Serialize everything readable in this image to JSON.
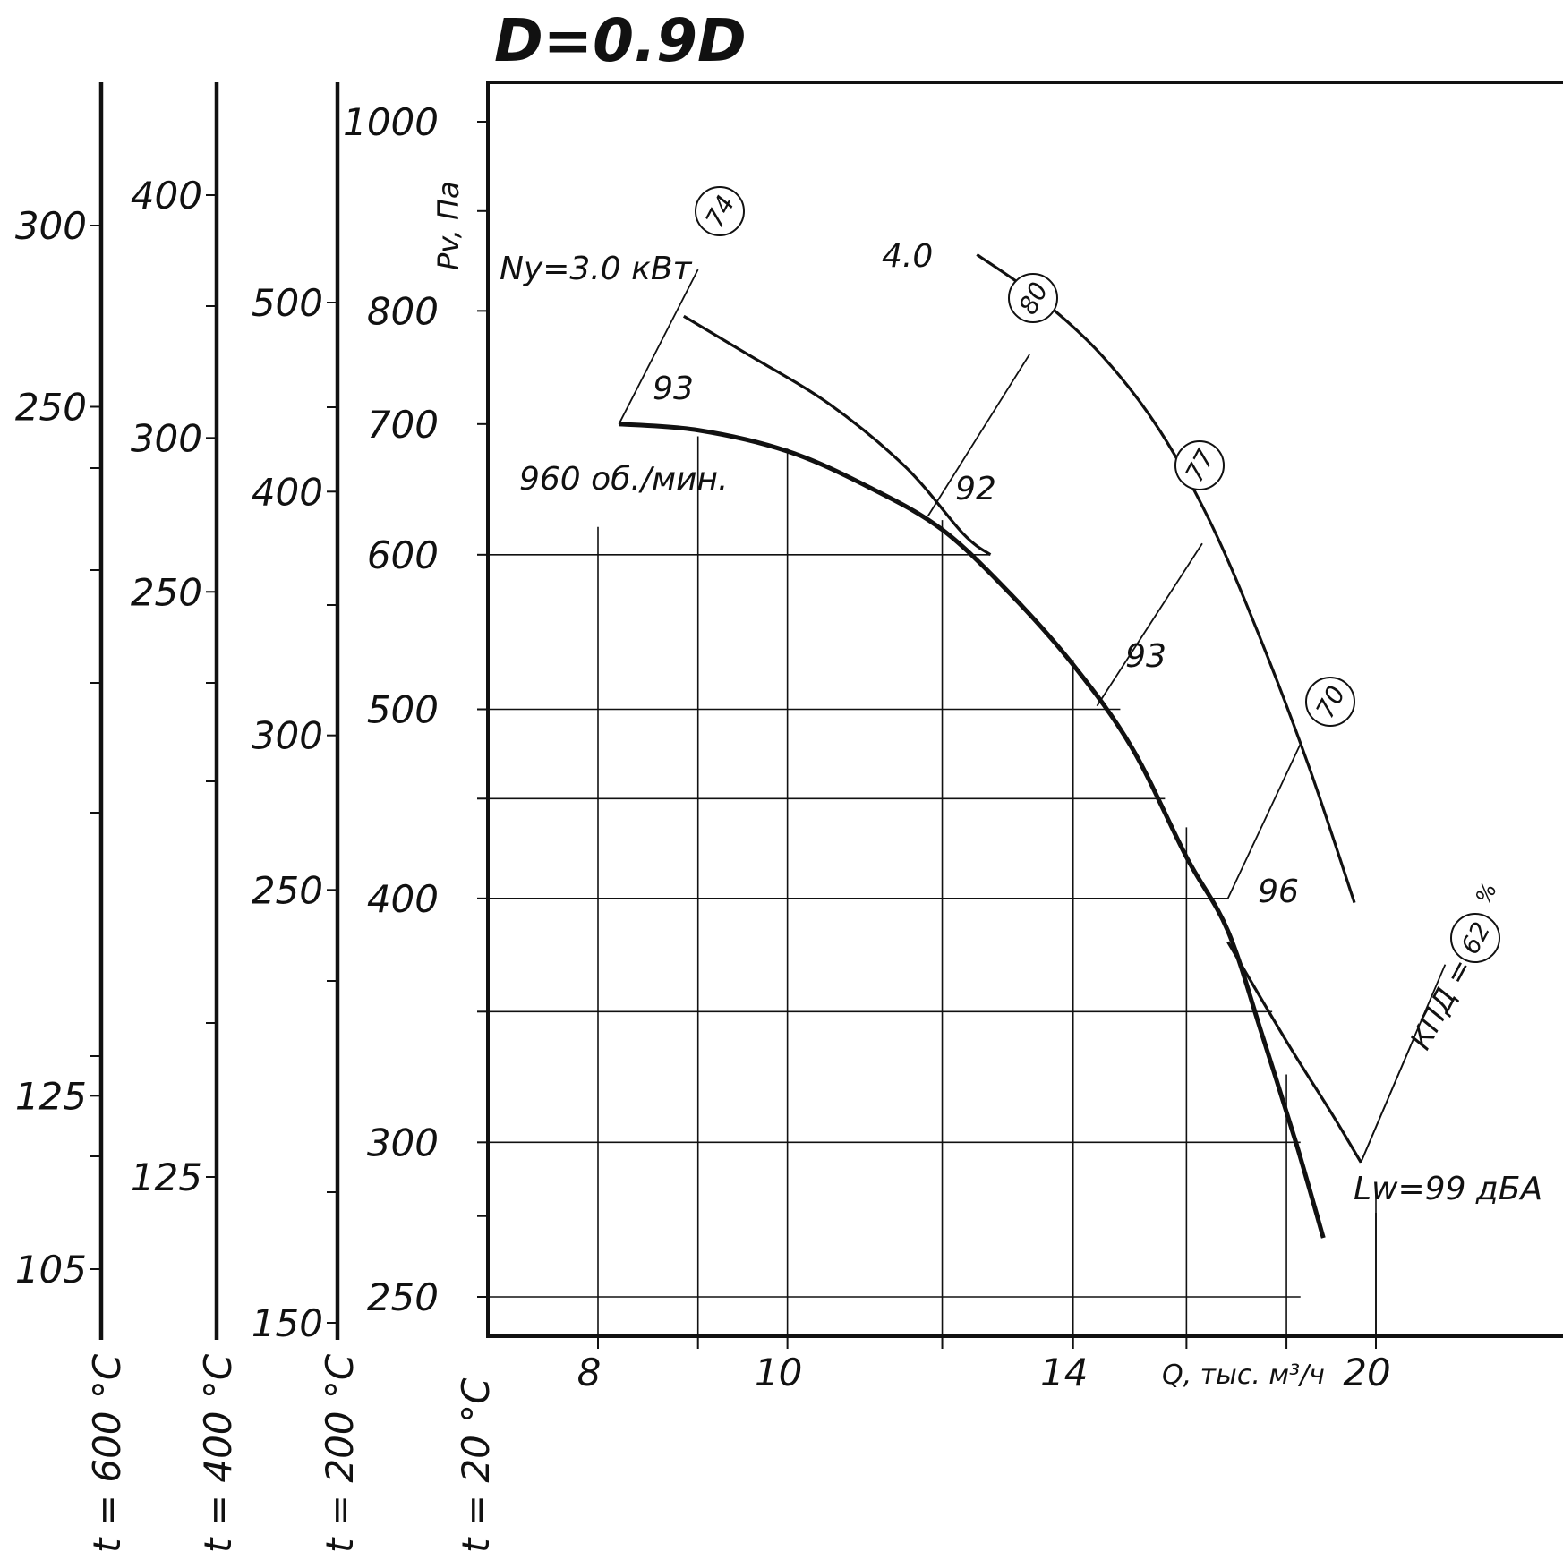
{
  "chart_data": {
    "type": "line",
    "title": "D=0.9D",
    "ylabel": "Pv, Па",
    "xlabel": "Q, тыс. м³/ч",
    "x_scale": "log",
    "y_scale": "log",
    "xlim": [
      6.5,
      25
    ],
    "ylim": [
      235,
      1050
    ],
    "x_ticks": [
      {
        "value": 8,
        "label": "8"
      },
      {
        "value": 9,
        "label": ""
      },
      {
        "value": 10,
        "label": "10"
      },
      {
        "value": 12,
        "label": ""
      },
      {
        "value": 14,
        "label": "14"
      },
      {
        "value": 16,
        "label": ""
      },
      {
        "value": 18,
        "label": ""
      },
      {
        "value": 20,
        "label": "20"
      }
    ],
    "y_ticks": [
      {
        "value": 250,
        "label": "250"
      },
      {
        "value": 275,
        "label": ""
      },
      {
        "value": 300,
        "label": "300"
      },
      {
        "value": 350,
        "label": ""
      },
      {
        "value": 400,
        "label": "400"
      },
      {
        "value": 450,
        "label": ""
      },
      {
        "value": 500,
        "label": "500"
      },
      {
        "value": 600,
        "label": "600"
      },
      {
        "value": 700,
        "label": "700"
      },
      {
        "value": 800,
        "label": "800"
      },
      {
        "value": 900,
        "label": ""
      },
      {
        "value": 1000,
        "label": "1000"
      }
    ],
    "gridlines": {
      "horizontal": [
        {
          "y": 250,
          "x_from": 6.5,
          "x_to": 18.3
        },
        {
          "y": 300,
          "x_from": 6.5,
          "x_to": 18.3
        },
        {
          "y": 350,
          "x_from": 6.5,
          "x_to": 17.7
        },
        {
          "y": 400,
          "x_from": 6.5,
          "x_to": 16.8
        },
        {
          "y": 450,
          "x_from": 6.5,
          "x_to": 15.6
        },
        {
          "y": 500,
          "x_from": 6.5,
          "x_to": 14.8
        },
        {
          "y": 600,
          "x_from": 6.5,
          "x_to": 12.7
        }
      ],
      "vertical": [
        {
          "x": 8,
          "y_from": 235,
          "y_to": 620
        },
        {
          "x": 9,
          "y_from": 235,
          "y_to": 690
        },
        {
          "x": 10,
          "y_from": 235,
          "y_to": 680
        },
        {
          "x": 12,
          "y_from": 235,
          "y_to": 625
        },
        {
          "x": 14,
          "y_from": 235,
          "y_to": 530
        },
        {
          "x": 16,
          "y_from": 235,
          "y_to": 435
        },
        {
          "x": 18,
          "y_from": 235,
          "y_to": 325
        },
        {
          "x": 20,
          "y_from": 235,
          "y_to": 282
        }
      ]
    },
    "series": [
      {
        "name": "960 об./мин.",
        "style": "thick",
        "points": [
          [
            8.2,
            700
          ],
          [
            9,
            695
          ],
          [
            10,
            678
          ],
          [
            11,
            650
          ],
          [
            12,
            618
          ],
          [
            13,
            573
          ],
          [
            14,
            527
          ],
          [
            15,
            478
          ],
          [
            16,
            420
          ],
          [
            16.8,
            385
          ],
          [
            17.5,
            340
          ],
          [
            18.2,
            300
          ],
          [
            18.8,
            268
          ]
        ]
      },
      {
        "name": "Ny=3.0 кВт",
        "style": "thin",
        "points": [
          [
            8.85,
            795
          ],
          [
            9.5,
            762
          ],
          [
            10.5,
            717
          ],
          [
            11.5,
            665
          ],
          [
            12.3,
            615
          ],
          [
            12.7,
            600
          ]
        ]
      },
      {
        "name": "4.0",
        "style": "thin",
        "points": [
          [
            12.5,
            855
          ],
          [
            13.5,
            810
          ],
          [
            14.5,
            758
          ],
          [
            15.5,
            695
          ],
          [
            16.5,
            620
          ],
          [
            17.5,
            540
          ],
          [
            18.5,
            466
          ],
          [
            19.5,
            398
          ]
        ]
      },
      {
        "name": "КПД = 62 %",
        "style": "thin",
        "points": [
          [
            16.8,
            380
          ],
          [
            18.0,
            338
          ],
          [
            19.0,
            310
          ],
          [
            19.65,
            293
          ]
        ]
      }
    ],
    "efficiency_lines": [
      {
        "label": "74",
        "value_label": "93",
        "points": [
          [
            8.2,
            700
          ],
          [
            9.0,
            840
          ]
        ]
      },
      {
        "label": "80",
        "value_label": "92",
        "points": [
          [
            11.8,
            628
          ],
          [
            13.3,
            760
          ]
        ]
      },
      {
        "label": "77",
        "value_label": "93",
        "points": [
          [
            14.4,
            502
          ],
          [
            16.3,
            608
          ]
        ]
      },
      {
        "label": "70",
        "value_label": "96",
        "points": [
          [
            16.8,
            400
          ],
          [
            18.3,
            480
          ]
        ]
      },
      {
        "label": "62",
        "value_label": "",
        "points": [
          [
            19.65,
            293
          ],
          [
            21.7,
            370
          ]
        ]
      }
    ],
    "annotations": {
      "speed": "960 об./мин.",
      "power_1": "Ny=3.0 кВт",
      "power_2": "4.0",
      "efficiency_label": "КПД =",
      "efficiency_unit": "%",
      "sound": "Lw=99 дБА"
    },
    "temperature_scales": [
      {
        "label": "t = 20 °C",
        "ticks": []
      },
      {
        "label": "t = 200 °C",
        "ticks": [
          {
            "value": 150,
            "label": "150"
          },
          {
            "value": 250,
            "label": "250"
          },
          {
            "value": 300,
            "label": "300"
          },
          {
            "value": 400,
            "label": "400"
          },
          {
            "value": 500,
            "label": "500"
          }
        ]
      },
      {
        "label": "t = 400 °C",
        "ticks": [
          {
            "value": 125,
            "label": "125"
          },
          {
            "value": 250,
            "label": "250"
          },
          {
            "value": 300,
            "label": "300"
          },
          {
            "value": 400,
            "label": "400"
          }
        ]
      },
      {
        "label": "t = 600 °C",
        "ticks": [
          {
            "value": 105,
            "label": "105"
          },
          {
            "value": 125,
            "label": "125"
          },
          {
            "value": 250,
            "label": "250"
          },
          {
            "value": 300,
            "label": "300"
          }
        ]
      }
    ]
  }
}
